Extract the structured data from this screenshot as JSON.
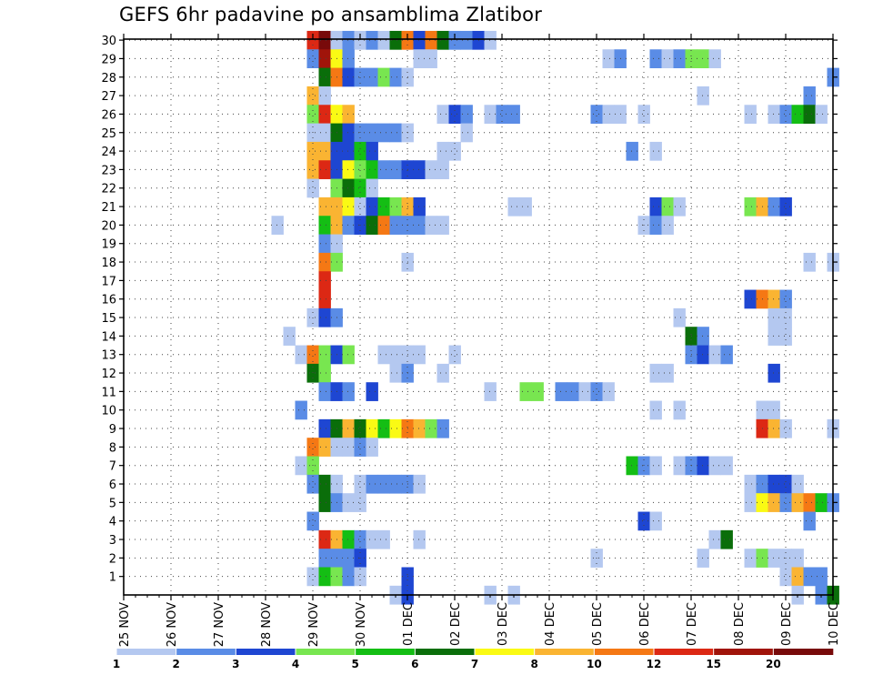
{
  "chart_data": {
    "type": "heatmap",
    "title": "GEFS 6hr padavine po ansamblima Zlatibor",
    "xlabel": "",
    "ylabel": "",
    "x_tick_labels": [
      "25 NOV",
      "26 NOV",
      "27 NOV",
      "28 NOV",
      "29 NOV",
      "30 NOV",
      "01 DEC",
      "02 DEC",
      "03 DEC",
      "04 DEC",
      "05 DEC",
      "06 DEC",
      "07 DEC",
      "08 DEC",
      "09 DEC",
      "10 DEC"
    ],
    "y_tick_labels": [
      "1",
      "2",
      "3",
      "4",
      "5",
      "6",
      "7",
      "8",
      "9",
      "10",
      "11",
      "12",
      "13",
      "14",
      "15",
      "16",
      "17",
      "18",
      "19",
      "20",
      "21",
      "22",
      "23",
      "24",
      "25",
      "26",
      "27",
      "28",
      "29",
      "30"
    ],
    "y_range": [
      1,
      30
    ],
    "x_range_steps": [
      0,
      60
    ],
    "grid": true,
    "colorbar": {
      "labels": [
        "1",
        "2",
        "3",
        "4",
        "5",
        "6",
        "7",
        "8",
        "10",
        "12",
        "15",
        "20"
      ],
      "colors": [
        "#b4c8f0",
        "#5a8ce6",
        "#1e46d2",
        "#78e650",
        "#14be14",
        "#0a6e0a",
        "#fafa14",
        "#fab432",
        "#f57814",
        "#dc2814",
        "#a0140a",
        "#780a0a"
      ]
    },
    "cells": [
      [
        30,
        16,
        9
      ],
      [
        30,
        17,
        11
      ],
      [
        30,
        18,
        0
      ],
      [
        30,
        19,
        1
      ],
      [
        30,
        20,
        0
      ],
      [
        30,
        21,
        1
      ],
      [
        30,
        22,
        0
      ],
      [
        30,
        23,
        5
      ],
      [
        30,
        24,
        8
      ],
      [
        30,
        25,
        2
      ],
      [
        30,
        26,
        8
      ],
      [
        30,
        27,
        5
      ],
      [
        30,
        28,
        1
      ],
      [
        30,
        29,
        1
      ],
      [
        30,
        30,
        2
      ],
      [
        30,
        31,
        0
      ],
      [
        29,
        16,
        1
      ],
      [
        29,
        17,
        10
      ],
      [
        29,
        18,
        6
      ],
      [
        29,
        19,
        1
      ],
      [
        29,
        25,
        0
      ],
      [
        29,
        26,
        0
      ],
      [
        29,
        41,
        0
      ],
      [
        29,
        42,
        1
      ],
      [
        29,
        45,
        1
      ],
      [
        29,
        46,
        0
      ],
      [
        29,
        47,
        1
      ],
      [
        29,
        48,
        3
      ],
      [
        29,
        49,
        3
      ],
      [
        29,
        50,
        0
      ],
      [
        28,
        17,
        5
      ],
      [
        28,
        18,
        8
      ],
      [
        28,
        19,
        2
      ],
      [
        28,
        20,
        1
      ],
      [
        28,
        21,
        1
      ],
      [
        28,
        22,
        3
      ],
      [
        28,
        23,
        1
      ],
      [
        28,
        24,
        0
      ],
      [
        28,
        60,
        1
      ],
      [
        27,
        16,
        7
      ],
      [
        27,
        17,
        0
      ],
      [
        27,
        49,
        0
      ],
      [
        27,
        58,
        1
      ],
      [
        26,
        16,
        3
      ],
      [
        26,
        17,
        9
      ],
      [
        26,
        18,
        6
      ],
      [
        26,
        19,
        7
      ],
      [
        26,
        27,
        0
      ],
      [
        26,
        28,
        2
      ],
      [
        26,
        29,
        1
      ],
      [
        26,
        31,
        0
      ],
      [
        26,
        32,
        1
      ],
      [
        26,
        33,
        1
      ],
      [
        26,
        40,
        1
      ],
      [
        26,
        41,
        0
      ],
      [
        26,
        42,
        0
      ],
      [
        26,
        44,
        0
      ],
      [
        26,
        53,
        0
      ],
      [
        26,
        55,
        0
      ],
      [
        26,
        56,
        1
      ],
      [
        26,
        57,
        4
      ],
      [
        26,
        58,
        5
      ],
      [
        26,
        59,
        0
      ],
      [
        25,
        16,
        0
      ],
      [
        25,
        17,
        0
      ],
      [
        25,
        18,
        5
      ],
      [
        25,
        19,
        2
      ],
      [
        25,
        20,
        1
      ],
      [
        25,
        21,
        1
      ],
      [
        25,
        22,
        1
      ],
      [
        25,
        23,
        1
      ],
      [
        25,
        24,
        0
      ],
      [
        25,
        29,
        0
      ],
      [
        24,
        16,
        7
      ],
      [
        24,
        17,
        7
      ],
      [
        24,
        18,
        2
      ],
      [
        24,
        19,
        2
      ],
      [
        24,
        20,
        4
      ],
      [
        24,
        21,
        2
      ],
      [
        24,
        27,
        0
      ],
      [
        24,
        28,
        0
      ],
      [
        24,
        43,
        1
      ],
      [
        24,
        45,
        0
      ],
      [
        23,
        16,
        7
      ],
      [
        23,
        17,
        9
      ],
      [
        23,
        18,
        2
      ],
      [
        23,
        19,
        6
      ],
      [
        23,
        20,
        3
      ],
      [
        23,
        21,
        4
      ],
      [
        23,
        22,
        1
      ],
      [
        23,
        23,
        1
      ],
      [
        23,
        24,
        2
      ],
      [
        23,
        25,
        2
      ],
      [
        23,
        26,
        0
      ],
      [
        23,
        27,
        0
      ],
      [
        22,
        16,
        0
      ],
      [
        22,
        18,
        3
      ],
      [
        22,
        19,
        5
      ],
      [
        22,
        20,
        4
      ],
      [
        22,
        21,
        0
      ],
      [
        21,
        17,
        7
      ],
      [
        21,
        18,
        7
      ],
      [
        21,
        19,
        6
      ],
      [
        21,
        20,
        0
      ],
      [
        21,
        21,
        2
      ],
      [
        21,
        22,
        4
      ],
      [
        21,
        23,
        3
      ],
      [
        21,
        24,
        7
      ],
      [
        21,
        25,
        2
      ],
      [
        21,
        33,
        0
      ],
      [
        21,
        34,
        0
      ],
      [
        21,
        45,
        2
      ],
      [
        21,
        46,
        3
      ],
      [
        21,
        47,
        0
      ],
      [
        21,
        53,
        3
      ],
      [
        21,
        54,
        7
      ],
      [
        21,
        55,
        1
      ],
      [
        21,
        56,
        2
      ],
      [
        20,
        13,
        0
      ],
      [
        20,
        17,
        4
      ],
      [
        20,
        18,
        7
      ],
      [
        20,
        19,
        1
      ],
      [
        20,
        20,
        2
      ],
      [
        20,
        21,
        5
      ],
      [
        20,
        22,
        8
      ],
      [
        20,
        23,
        1
      ],
      [
        20,
        24,
        1
      ],
      [
        20,
        25,
        1
      ],
      [
        20,
        26,
        0
      ],
      [
        20,
        27,
        0
      ],
      [
        20,
        44,
        0
      ],
      [
        20,
        45,
        1
      ],
      [
        20,
        46,
        0
      ],
      [
        19,
        17,
        1
      ],
      [
        19,
        18,
        0
      ],
      [
        18,
        17,
        8
      ],
      [
        18,
        18,
        3
      ],
      [
        18,
        24,
        0
      ],
      [
        18,
        58,
        0
      ],
      [
        18,
        60,
        0
      ],
      [
        17,
        17,
        9
      ],
      [
        16,
        17,
        9
      ],
      [
        16,
        53,
        2
      ],
      [
        16,
        54,
        8
      ],
      [
        16,
        55,
        7
      ],
      [
        16,
        56,
        1
      ],
      [
        15,
        16,
        0
      ],
      [
        15,
        17,
        2
      ],
      [
        15,
        18,
        1
      ],
      [
        15,
        47,
        0
      ],
      [
        15,
        56,
        0
      ],
      [
        15,
        55,
        0
      ],
      [
        14,
        14,
        0
      ],
      [
        14,
        48,
        5
      ],
      [
        14,
        49,
        1
      ],
      [
        14,
        55,
        0
      ],
      [
        14,
        56,
        0
      ],
      [
        13,
        15,
        0
      ],
      [
        13,
        16,
        8
      ],
      [
        13,
        17,
        3
      ],
      [
        13,
        18,
        2
      ],
      [
        13,
        19,
        3
      ],
      [
        13,
        22,
        0
      ],
      [
        13,
        23,
        0
      ],
      [
        13,
        24,
        0
      ],
      [
        13,
        25,
        0
      ],
      [
        13,
        28,
        0
      ],
      [
        13,
        48,
        1
      ],
      [
        13,
        49,
        2
      ],
      [
        13,
        50,
        0
      ],
      [
        13,
        51,
        1
      ],
      [
        12,
        16,
        5
      ],
      [
        12,
        17,
        3
      ],
      [
        12,
        23,
        0
      ],
      [
        12,
        24,
        1
      ],
      [
        12,
        27,
        0
      ],
      [
        12,
        45,
        0
      ],
      [
        12,
        46,
        0
      ],
      [
        12,
        55,
        2
      ],
      [
        11,
        17,
        1
      ],
      [
        11,
        18,
        2
      ],
      [
        11,
        19,
        1
      ],
      [
        11,
        21,
        2
      ],
      [
        11,
        31,
        0
      ],
      [
        11,
        34,
        3
      ],
      [
        11,
        35,
        3
      ],
      [
        11,
        37,
        1
      ],
      [
        11,
        38,
        1
      ],
      [
        11,
        39,
        0
      ],
      [
        11,
        40,
        1
      ],
      [
        11,
        41,
        0
      ],
      [
        10,
        15,
        1
      ],
      [
        10,
        45,
        0
      ],
      [
        10,
        47,
        0
      ],
      [
        10,
        54,
        0
      ],
      [
        10,
        55,
        0
      ],
      [
        9,
        17,
        2
      ],
      [
        9,
        18,
        5
      ],
      [
        9,
        19,
        7
      ],
      [
        9,
        20,
        5
      ],
      [
        9,
        21,
        6
      ],
      [
        9,
        22,
        4
      ],
      [
        9,
        23,
        6
      ],
      [
        9,
        24,
        8
      ],
      [
        9,
        25,
        7
      ],
      [
        9,
        26,
        3
      ],
      [
        9,
        27,
        1
      ],
      [
        9,
        54,
        9
      ],
      [
        9,
        55,
        7
      ],
      [
        9,
        56,
        0
      ],
      [
        9,
        60,
        0
      ],
      [
        8,
        16,
        8
      ],
      [
        8,
        17,
        7
      ],
      [
        8,
        18,
        0
      ],
      [
        8,
        19,
        0
      ],
      [
        8,
        20,
        1
      ],
      [
        8,
        21,
        0
      ],
      [
        7,
        15,
        0
      ],
      [
        7,
        16,
        3
      ],
      [
        7,
        43,
        4
      ],
      [
        7,
        44,
        1
      ],
      [
        7,
        45,
        0
      ],
      [
        7,
        47,
        0
      ],
      [
        7,
        48,
        1
      ],
      [
        7,
        49,
        2
      ],
      [
        7,
        50,
        0
      ],
      [
        7,
        51,
        0
      ],
      [
        6,
        16,
        1
      ],
      [
        6,
        17,
        5
      ],
      [
        6,
        18,
        0
      ],
      [
        6,
        20,
        0
      ],
      [
        6,
        21,
        1
      ],
      [
        6,
        22,
        1
      ],
      [
        6,
        23,
        1
      ],
      [
        6,
        24,
        1
      ],
      [
        6,
        25,
        0
      ],
      [
        6,
        53,
        0
      ],
      [
        6,
        54,
        1
      ],
      [
        6,
        55,
        2
      ],
      [
        6,
        56,
        2
      ],
      [
        6,
        57,
        0
      ],
      [
        5,
        17,
        5
      ],
      [
        5,
        18,
        1
      ],
      [
        5,
        19,
        0
      ],
      [
        5,
        20,
        0
      ],
      [
        5,
        53,
        0
      ],
      [
        5,
        54,
        6
      ],
      [
        5,
        55,
        7
      ],
      [
        5,
        56,
        1
      ],
      [
        5,
        57,
        7
      ],
      [
        5,
        58,
        8
      ],
      [
        5,
        59,
        4
      ],
      [
        5,
        60,
        1
      ],
      [
        4,
        16,
        1
      ],
      [
        4,
        44,
        2
      ],
      [
        4,
        45,
        0
      ],
      [
        4,
        58,
        1
      ],
      [
        3,
        17,
        9
      ],
      [
        3,
        18,
        7
      ],
      [
        3,
        19,
        4
      ],
      [
        3,
        20,
        1
      ],
      [
        3,
        21,
        0
      ],
      [
        3,
        22,
        0
      ],
      [
        3,
        25,
        0
      ],
      [
        3,
        50,
        0
      ],
      [
        3,
        51,
        5
      ],
      [
        2,
        17,
        1
      ],
      [
        2,
        18,
        1
      ],
      [
        2,
        19,
        1
      ],
      [
        2,
        20,
        2
      ],
      [
        2,
        40,
        0
      ],
      [
        2,
        49,
        0
      ],
      [
        2,
        53,
        0
      ],
      [
        2,
        54,
        3
      ],
      [
        2,
        55,
        0
      ],
      [
        2,
        56,
        0
      ],
      [
        2,
        57,
        0
      ],
      [
        1,
        16,
        0
      ],
      [
        1,
        17,
        4
      ],
      [
        1,
        18,
        3
      ],
      [
        1,
        19,
        1
      ],
      [
        1,
        20,
        0
      ],
      [
        1,
        24,
        2
      ],
      [
        1,
        56,
        0
      ],
      [
        1,
        57,
        7
      ],
      [
        1,
        58,
        1
      ],
      [
        1,
        59,
        1
      ],
      [
        0,
        23,
        0
      ],
      [
        0,
        24,
        2
      ],
      [
        0,
        31,
        0
      ],
      [
        0,
        33,
        0
      ],
      [
        0,
        57,
        0
      ],
      [
        0,
        59,
        1
      ],
      [
        0,
        60,
        5
      ]
    ]
  }
}
